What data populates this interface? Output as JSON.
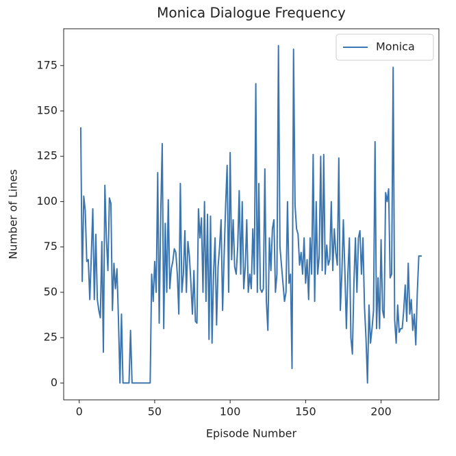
{
  "chart_data": {
    "type": "line",
    "title": "Monica Dialogue Frequency",
    "x_label": "Episode Number",
    "y_label": "Number of Lines",
    "x": [
      1,
      2,
      3,
      4,
      5,
      6,
      7,
      8,
      9,
      10,
      11,
      12,
      13,
      14,
      15,
      16,
      17,
      18,
      19,
      20,
      21,
      22,
      23,
      24,
      25,
      26,
      27,
      28,
      29,
      30,
      31,
      32,
      33,
      34,
      35,
      36,
      37,
      38,
      39,
      40,
      41,
      42,
      43,
      44,
      45,
      46,
      47,
      48,
      49,
      50,
      51,
      52,
      53,
      54,
      55,
      56,
      57,
      58,
      59,
      60,
      61,
      62,
      63,
      64,
      65,
      66,
      67,
      68,
      69,
      70,
      71,
      72,
      73,
      74,
      75,
      76,
      77,
      78,
      79,
      80,
      81,
      82,
      83,
      84,
      85,
      86,
      87,
      88,
      89,
      90,
      91,
      92,
      93,
      94,
      95,
      96,
      97,
      98,
      99,
      100,
      101,
      102,
      103,
      104,
      105,
      106,
      107,
      108,
      109,
      110,
      111,
      112,
      113,
      114,
      115,
      116,
      117,
      118,
      119,
      120,
      121,
      122,
      123,
      124,
      125,
      126,
      127,
      128,
      129,
      130,
      131,
      132,
      133,
      134,
      135,
      136,
      137,
      138,
      139,
      140,
      141,
      142,
      143,
      144,
      145,
      146,
      147,
      148,
      149,
      150,
      151,
      152,
      153,
      154,
      155,
      156,
      157,
      158,
      159,
      160,
      161,
      162,
      163,
      164,
      165,
      166,
      167,
      168,
      169,
      170,
      171,
      172,
      173,
      174,
      175,
      176,
      177,
      178,
      179,
      180,
      181,
      182,
      183,
      184,
      185,
      186,
      187,
      188,
      189,
      190,
      191,
      192,
      193,
      194,
      195,
      196,
      197,
      198,
      199,
      200,
      201,
      202,
      203,
      204,
      205,
      206,
      207,
      208,
      209,
      210,
      211,
      212,
      213,
      214,
      215,
      216,
      217,
      218,
      219,
      220,
      221,
      222,
      223,
      224,
      225,
      226,
      227
    ],
    "series": [
      {
        "name": "Monica",
        "color": "#3b75af",
        "values": [
          141,
          56,
          103,
          95,
          67,
          68,
          46,
          70,
          96,
          46,
          82,
          46,
          40,
          36,
          78,
          17,
          109,
          80,
          62,
          102,
          99,
          40,
          66,
          52,
          63,
          35,
          0,
          38,
          0,
          0,
          0,
          0,
          0,
          29,
          0,
          0,
          0,
          0,
          0,
          0,
          0,
          0,
          0,
          0,
          0,
          0,
          0,
          60,
          45,
          67,
          50,
          116,
          33,
          93,
          132,
          30,
          88,
          50,
          101,
          52,
          63,
          67,
          74,
          72,
          60,
          38,
          110,
          50,
          60,
          84,
          50,
          78,
          70,
          55,
          38,
          62,
          34,
          33,
          96,
          80,
          91,
          50,
          100,
          45,
          93,
          24,
          92,
          22,
          60,
          80,
          32,
          64,
          75,
          90,
          40,
          70,
          98,
          120,
          50,
          127,
          68,
          90,
          64,
          60,
          75,
          106,
          60,
          100,
          52,
          64,
          90,
          50,
          60,
          52,
          85,
          60,
          165,
          50,
          110,
          52,
          50,
          52,
          118,
          45,
          29,
          80,
          62,
          85,
          90,
          50,
          60,
          186,
          75,
          65,
          55,
          45,
          50,
          100,
          55,
          60,
          8,
          184,
          98,
          85,
          82,
          65,
          72,
          60,
          80,
          55,
          68,
          46,
          80,
          60,
          126,
          45,
          100,
          60,
          70,
          125,
          62,
          126,
          60,
          76,
          65,
          68,
          100,
          62,
          85,
          72,
          65,
          124,
          40,
          60,
          90,
          62,
          30,
          60,
          80,
          25,
          16,
          55,
          80,
          50,
          80,
          84,
          60,
          80,
          42,
          25,
          0,
          43,
          22,
          30,
          40,
          133,
          30,
          58,
          30,
          79,
          40,
          36,
          105,
          100,
          107,
          58,
          60,
          174,
          35,
          22,
          43,
          28,
          30,
          30,
          40,
          54,
          34,
          66,
          38,
          46,
          29,
          38,
          21,
          50,
          70,
          70,
          70
        ]
      }
    ],
    "xlim": [
      -10.3,
      238.3
    ],
    "ylim": [
      -9.3,
      195.3
    ],
    "xticks": [
      0,
      50,
      100,
      150,
      200
    ],
    "yticks": [
      0,
      25,
      50,
      75,
      100,
      125,
      150,
      175
    ],
    "legend": "upper right"
  }
}
